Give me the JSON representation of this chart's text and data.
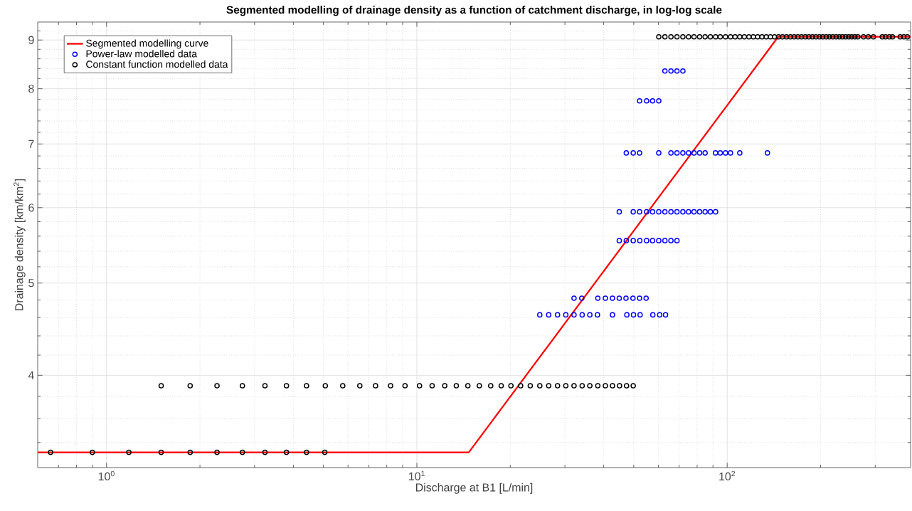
{
  "chart_data": {
    "type": "scatter",
    "title": "Segmented modelling of drainage density as a function of catchment discharge, in log-log scale",
    "xlabel": "Discharge at B1 [L/min]",
    "ylabel": "Drainage density [km/km$^{2}$]",
    "log": "xy",
    "grid": true,
    "legend": "top left",
    "marker": "circle",
    "xlim": [
      0.6,
      390
    ],
    "ylim": [
      3.2,
      9.4
    ],
    "xticks": [
      {
        "value": 0.7,
        "label": null
      },
      {
        "value": 0.8,
        "label": null
      },
      {
        "value": 0.9,
        "label": null
      },
      {
        "value": 1,
        "label": "10$^{0}$"
      },
      {
        "value": 2,
        "label": null
      },
      {
        "value": 3,
        "label": null
      },
      {
        "value": 4,
        "label": null
      },
      {
        "value": 5,
        "label": null
      },
      {
        "value": 6,
        "label": null
      },
      {
        "value": 7,
        "label": null
      },
      {
        "value": 8,
        "label": null
      },
      {
        "value": 9,
        "label": null
      },
      {
        "value": 10,
        "label": "10$^{1}$"
      },
      {
        "value": 20,
        "label": null
      },
      {
        "value": 30,
        "label": null
      },
      {
        "value": 40,
        "label": null
      },
      {
        "value": 50,
        "label": null
      },
      {
        "value": 60,
        "label": null
      },
      {
        "value": 70,
        "label": null
      },
      {
        "value": 80,
        "label": null
      },
      {
        "value": 90,
        "label": null
      },
      {
        "value": 100,
        "label": "10$^{2}$"
      },
      {
        "value": 200,
        "label": null
      },
      {
        "value": 300,
        "label": null
      }
    ],
    "yticks": [
      {
        "value": 3.4,
        "label": null
      },
      {
        "value": 3.6,
        "label": null
      },
      {
        "value": 3.8,
        "label": null
      },
      4,
      {
        "value": 4.2,
        "label": null
      },
      {
        "value": 4.4,
        "label": null
      },
      {
        "value": 4.6,
        "label": null
      },
      {
        "value": 4.8,
        "label": null
      },
      5,
      {
        "value": 5.2,
        "label": null
      },
      {
        "value": 5.4,
        "label": null
      },
      {
        "value": 5.6,
        "label": null
      },
      {
        "value": 5.8,
        "label": null
      },
      6,
      {
        "value": 6.2,
        "label": null
      },
      {
        "value": 6.4,
        "label": null
      },
      {
        "value": 6.6,
        "label": null
      },
      {
        "value": 6.8,
        "label": null
      },
      7,
      {
        "value": 7.2,
        "label": null
      },
      {
        "value": 7.4,
        "label": null
      },
      {
        "value": 7.6,
        "label": null
      },
      {
        "value": 7.8,
        "label": null
      },
      8,
      {
        "value": 8.2,
        "label": null
      },
      {
        "value": 8.4,
        "label": null
      },
      {
        "value": 8.6,
        "label": null
      },
      {
        "value": 8.8,
        "label": null
      },
      9,
      {
        "value": 9.2,
        "label": null
      }
    ],
    "series": [
      {
        "name": "Segmented modelling curve",
        "type": "line",
        "marker": "none",
        "color": "#ff0000",
        "x": [
          0.6,
          14.7,
          146,
          390
        ],
        "values": [
          3.32,
          3.32,
          9.07,
          9.07
        ]
      },
      {
        "name": "Power-law modelled data",
        "color": "#0000ff",
        "x": [
          32.1,
          34.0,
          38.3,
          40.5,
          42.7,
          44.9,
          47.2,
          49.7,
          52.2,
          54.8,
          24.9,
          26.6,
          28.4,
          30.2,
          32.1,
          34.1,
          36.1,
          38.2,
          42.7,
          47.5,
          49.9,
          52.4,
          57.6,
          60.6,
          63.3,
          44.9,
          47.3,
          49.8,
          52.3,
          55.0,
          57.5,
          60.2,
          63.0,
          65.9,
          68.9,
          44.9,
          49.8,
          52.2,
          55.0,
          57.5,
          60.2,
          63.0,
          65.9,
          68.9,
          72.0,
          75.1,
          78.2,
          81.5,
          84.9,
          88.3,
          91.8,
          47.3,
          49.8,
          52.2,
          60.2,
          65.9,
          68.9,
          72.0,
          75.1,
          78.2,
          81.5,
          84.9,
          91.7,
          95.0,
          98.8,
          102.5,
          109.8,
          134.8,
          52.2,
          55.0,
          57.5,
          60.2,
          63.0,
          65.9,
          68.9,
          72.0
        ],
        "values": [
          4.82,
          4.82,
          4.82,
          4.82,
          4.82,
          4.82,
          4.82,
          4.82,
          4.82,
          4.82,
          4.63,
          4.63,
          4.63,
          4.63,
          4.63,
          4.63,
          4.63,
          4.63,
          4.63,
          4.63,
          4.63,
          4.63,
          4.63,
          4.63,
          4.63,
          5.54,
          5.54,
          5.54,
          5.54,
          5.54,
          5.54,
          5.54,
          5.54,
          5.54,
          5.54,
          5.94,
          5.94,
          5.94,
          5.94,
          5.94,
          5.94,
          5.94,
          5.94,
          5.94,
          5.94,
          5.94,
          5.94,
          5.94,
          5.94,
          5.94,
          5.94,
          6.85,
          6.85,
          6.85,
          6.85,
          6.85,
          6.85,
          6.85,
          6.85,
          6.85,
          6.85,
          6.85,
          6.85,
          6.85,
          6.85,
          6.85,
          6.85,
          6.85,
          7.77,
          7.77,
          7.77,
          7.77,
          8.35,
          8.35,
          8.35,
          8.35
        ]
      },
      {
        "name": "Constant function modelled data",
        "color": "#000000",
        "x": [
          0.66,
          0.9,
          1.18,
          1.5,
          1.86,
          2.27,
          2.74,
          3.24,
          3.8,
          4.41,
          5.05,
          1.5,
          1.86,
          2.27,
          2.74,
          3.24,
          3.8,
          4.41,
          5.07,
          5.77,
          6.55,
          7.36,
          8.23,
          9.16,
          10.2,
          11.2,
          12.3,
          13.4,
          14.6,
          15.9,
          17.3,
          18.7,
          20.1,
          21.6,
          23.2,
          24.9,
          26.6,
          28.4,
          30.2,
          32.1,
          34.1,
          36.1,
          38.3,
          40.5,
          42.7,
          45.0,
          47.4,
          49.8,
          60.2,
          63.0,
          65.9,
          68.9,
          72.0,
          75.1,
          78.2,
          81.5,
          84.9,
          88.3,
          91.8,
          95.0,
          98.8,
          102.5,
          106.1,
          109.8,
          113.6,
          117.5,
          121.4,
          125.4,
          129.5,
          133.6,
          137.8,
          142.1,
          146.4,
          150.8,
          155.3,
          159.8,
          164.4,
          169,
          173.7,
          178.5,
          183.3,
          188.2,
          193.2,
          198.2,
          203.3,
          208.5,
          213.7,
          219,
          224.4,
          229.8,
          235.3,
          240.9,
          246.5,
          252.2,
          258,
          263.8,
          275,
          285,
          296,
          316,
          324,
          333,
          341,
          361,
          371,
          381
        ],
        "values": [
          3.32,
          3.32,
          3.32,
          3.32,
          3.32,
          3.32,
          3.32,
          3.32,
          3.32,
          3.32,
          3.32,
          3.9,
          3.9,
          3.9,
          3.9,
          3.9,
          3.9,
          3.9,
          3.9,
          3.9,
          3.9,
          3.9,
          3.9,
          3.9,
          3.9,
          3.9,
          3.9,
          3.9,
          3.9,
          3.9,
          3.9,
          3.9,
          3.9,
          3.9,
          3.9,
          3.9,
          3.9,
          3.9,
          3.9,
          3.9,
          3.9,
          3.9,
          3.9,
          3.9,
          3.9,
          3.9,
          3.9,
          3.9,
          9.07,
          9.07,
          9.07,
          9.07,
          9.07,
          9.07,
          9.07,
          9.07,
          9.07,
          9.07,
          9.07,
          9.07,
          9.07,
          9.07,
          9.07,
          9.07,
          9.07,
          9.07,
          9.07,
          9.07,
          9.07,
          9.07,
          9.07,
          9.07,
          9.07,
          9.07,
          9.07,
          9.07,
          9.07,
          9.07,
          9.07,
          9.07,
          9.07,
          9.07,
          9.07,
          9.07,
          9.07,
          9.07,
          9.07,
          9.07,
          9.07,
          9.07,
          9.07,
          9.07,
          9.07,
          9.07,
          9.07,
          9.07,
          9.07,
          9.07,
          9.07,
          9.07,
          9.07,
          9.07,
          9.07,
          9.07,
          9.07,
          9.07
        ]
      }
    ]
  }
}
